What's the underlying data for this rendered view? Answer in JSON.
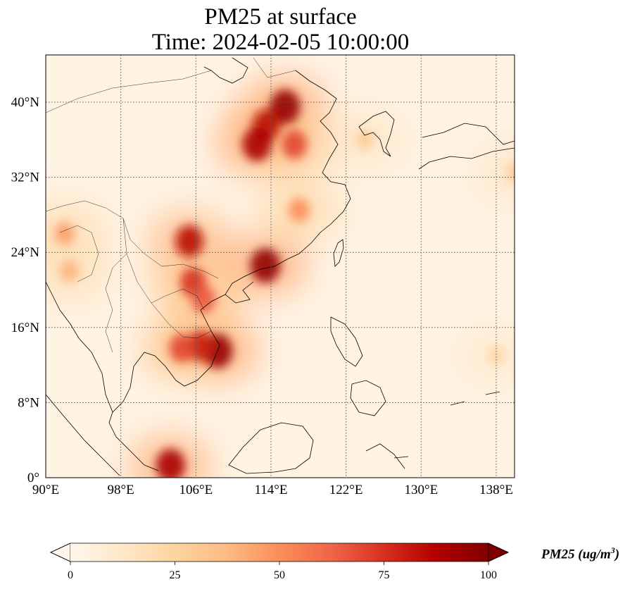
{
  "title": {
    "line1": "PM25 at surface",
    "line2": "Time: 2024-02-05 10:00:00"
  },
  "map": {
    "projection": "PlateCarree",
    "lon_range": [
      90,
      152
    ],
    "lat_range": [
      0,
      46
    ],
    "lon_ticks": [
      {
        "value": 90,
        "label": "90°E"
      },
      {
        "value": 98,
        "label": "98°E"
      },
      {
        "value": 106,
        "label": "106°E"
      },
      {
        "value": 114,
        "label": "114°E"
      },
      {
        "value": 122,
        "label": "122°E"
      },
      {
        "value": 130,
        "label": "130°E"
      },
      {
        "value": 138,
        "label": "138°E"
      }
    ],
    "lat_ticks": [
      {
        "value": 0,
        "label": "0°"
      },
      {
        "value": 8,
        "label": "8°N"
      },
      {
        "value": 16,
        "label": "16°N"
      },
      {
        "value": 24,
        "label": "24°N"
      },
      {
        "value": 32,
        "label": "32°N"
      },
      {
        "value": 40,
        "label": "40°N"
      }
    ],
    "gridlines": "dotted",
    "hotspots": [
      {
        "lon": 115.5,
        "lat": 39.5,
        "value": 95
      },
      {
        "lon": 113.5,
        "lat": 37.5,
        "value": 85
      },
      {
        "lon": 112.5,
        "lat": 35.5,
        "value": 90
      },
      {
        "lon": 116.5,
        "lat": 35.5,
        "value": 70
      },
      {
        "lon": 105.3,
        "lat": 25.2,
        "value": 85
      },
      {
        "lon": 113.4,
        "lat": 22.6,
        "value": 95
      },
      {
        "lon": 105.7,
        "lat": 20.8,
        "value": 75
      },
      {
        "lon": 106.8,
        "lat": 19.0,
        "value": 65
      },
      {
        "lon": 108.3,
        "lat": 13.5,
        "value": 95
      },
      {
        "lon": 106.5,
        "lat": 14.0,
        "value": 80
      },
      {
        "lon": 104.5,
        "lat": 13.8,
        "value": 70
      },
      {
        "lon": 103.3,
        "lat": 1.3,
        "value": 90
      },
      {
        "lon": 117.0,
        "lat": 28.5,
        "value": 50
      },
      {
        "lon": 92.0,
        "lat": 26.0,
        "value": 45
      },
      {
        "lon": 92.5,
        "lat": 22.0,
        "value": 40
      },
      {
        "lon": 124.0,
        "lat": 36.0,
        "value": 30
      },
      {
        "lon": 140.0,
        "lat": 32.5,
        "value": 30
      },
      {
        "lon": 138.0,
        "lat": 13.0,
        "value": 25
      }
    ]
  },
  "colorbar": {
    "cmap": "OrRd",
    "colors": [
      "#fff7ec",
      "#fee8c8",
      "#fdd49e",
      "#fdbb84",
      "#fc8d59",
      "#ef6548",
      "#d7301f",
      "#b30000",
      "#7f0000"
    ],
    "min": 0,
    "max": 100,
    "ticks": [
      {
        "value": 0,
        "label": "0"
      },
      {
        "value": 25,
        "label": "25"
      },
      {
        "value": 50,
        "label": "50"
      },
      {
        "value": 75,
        "label": "75"
      },
      {
        "value": 100,
        "label": "100"
      }
    ],
    "label_main": "PM25 (ug/m",
    "label_sup": "3",
    "label_end": ")",
    "extend": "both"
  }
}
